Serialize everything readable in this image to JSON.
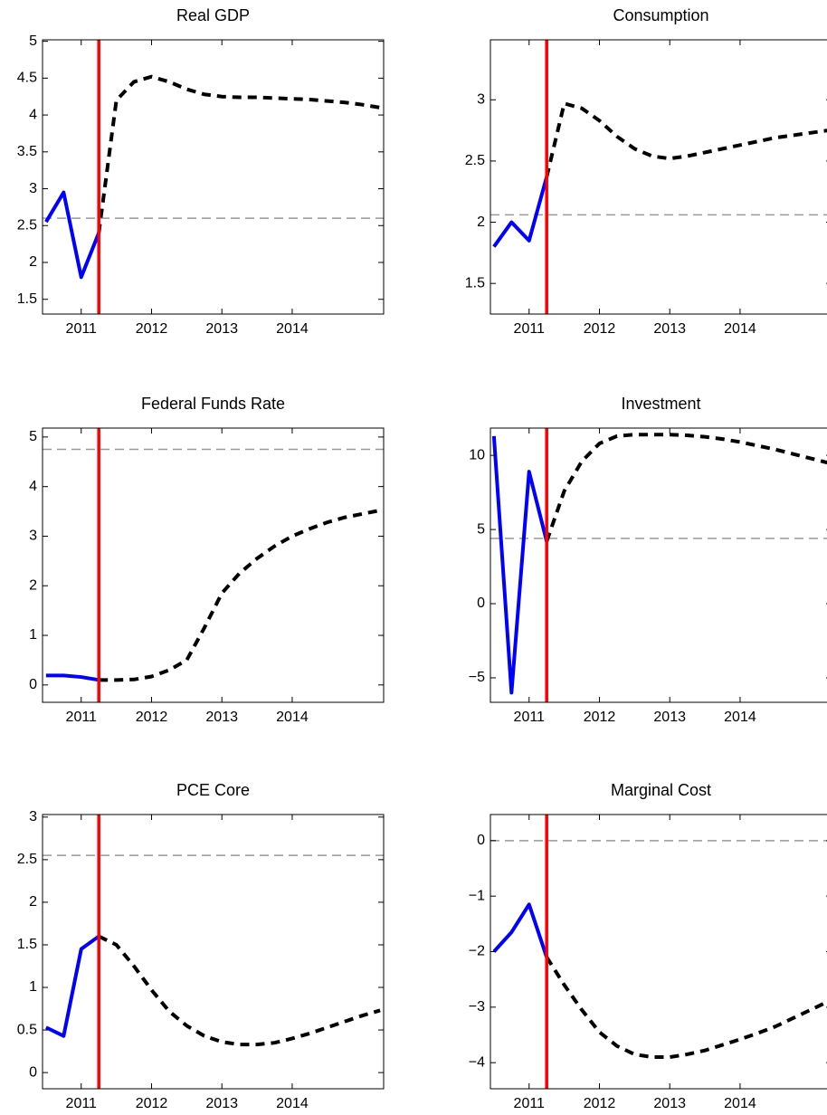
{
  "chart_data": [
    {
      "type": "line",
      "title": "Real GDP",
      "x": [
        2010.5,
        2010.75,
        2011,
        2011.25,
        2011.5,
        2011.75,
        2012,
        2012.25,
        2012.5,
        2012.75,
        2013,
        2013.25,
        2013.5,
        2013.75,
        2014,
        2014.25,
        2014.5,
        2014.75,
        2015,
        2015.25
      ],
      "series": [
        {
          "color": "#0000ff",
          "dashed": false,
          "values": [
            2.55,
            2.95,
            1.8,
            2.4,
            null,
            null,
            null,
            null,
            null,
            null,
            null,
            null,
            null,
            null,
            null,
            null,
            null,
            null,
            null,
            null
          ]
        },
        {
          "color": "#000000",
          "dashed": true,
          "values": [
            null,
            null,
            null,
            2.4,
            4.2,
            4.45,
            4.52,
            4.45,
            4.35,
            4.28,
            4.25,
            4.24,
            4.24,
            4.23,
            4.22,
            4.21,
            4.19,
            4.17,
            4.14,
            4.1
          ]
        }
      ],
      "xlim": [
        2010.45,
        2015.3
      ],
      "xticks": [
        2011,
        2012,
        2013,
        2014
      ],
      "ylim": [
        1.3,
        5.02
      ],
      "yticks": [
        1.5,
        2,
        2.5,
        3,
        3.5,
        4,
        4.5,
        5
      ],
      "vline": 2011.25,
      "vline_color": "#ff0000",
      "hline": 2.6,
      "hline_color": "#999999"
    },
    {
      "type": "line",
      "title": "Consumption",
      "x": [
        2010.5,
        2010.75,
        2011,
        2011.25,
        2011.5,
        2011.75,
        2012,
        2012.25,
        2012.5,
        2012.75,
        2013,
        2013.25,
        2013.5,
        2013.75,
        2014,
        2014.25,
        2014.5,
        2014.75,
        2015,
        2015.25
      ],
      "series": [
        {
          "color": "#0000ff",
          "dashed": false,
          "values": [
            1.8,
            2.0,
            1.85,
            2.37,
            null,
            null,
            null,
            null,
            null,
            null,
            null,
            null,
            null,
            null,
            null,
            null,
            null,
            null,
            null,
            null
          ]
        },
        {
          "color": "#000000",
          "dashed": true,
          "values": [
            null,
            null,
            null,
            2.37,
            2.97,
            2.93,
            2.83,
            2.7,
            2.6,
            2.54,
            2.52,
            2.54,
            2.57,
            2.6,
            2.63,
            2.66,
            2.69,
            2.71,
            2.73,
            2.75
          ]
        }
      ],
      "xlim": [
        2010.45,
        2015.3
      ],
      "xticks": [
        2011,
        2012,
        2013,
        2014
      ],
      "ylim": [
        1.25,
        3.49
      ],
      "yticks": [
        1.5,
        2,
        2.5,
        3
      ],
      "vline": 2011.25,
      "vline_color": "#ff0000",
      "hline": 2.06,
      "hline_color": "#999999"
    },
    {
      "type": "line",
      "title": "Federal Funds Rate",
      "x": [
        2010.5,
        2010.75,
        2011,
        2011.25,
        2011.5,
        2011.75,
        2012,
        2012.25,
        2012.5,
        2012.75,
        2013,
        2013.25,
        2013.5,
        2013.75,
        2014,
        2014.25,
        2014.5,
        2014.75,
        2015,
        2015.25
      ],
      "series": [
        {
          "color": "#0000ff",
          "dashed": false,
          "values": [
            0.19,
            0.19,
            0.16,
            0.1,
            null,
            null,
            null,
            null,
            null,
            null,
            null,
            null,
            null,
            null,
            null,
            null,
            null,
            null,
            null,
            null
          ]
        },
        {
          "color": "#000000",
          "dashed": true,
          "values": [
            null,
            null,
            null,
            0.1,
            0.1,
            0.11,
            0.17,
            0.3,
            0.5,
            1.15,
            1.85,
            2.25,
            2.55,
            2.8,
            3.0,
            3.15,
            3.28,
            3.38,
            3.45,
            3.52
          ]
        }
      ],
      "xlim": [
        2010.45,
        2015.3
      ],
      "xticks": [
        2011,
        2012,
        2013,
        2014
      ],
      "ylim": [
        -0.35,
        5.18
      ],
      "yticks": [
        0,
        1,
        2,
        3,
        4,
        5
      ],
      "vline": 2011.25,
      "vline_color": "#ff0000",
      "hline": 4.75,
      "hline_color": "#999999"
    },
    {
      "type": "line",
      "title": "Investment",
      "x": [
        2010.5,
        2010.75,
        2011,
        2011.25,
        2011.5,
        2011.75,
        2012,
        2012.25,
        2012.5,
        2012.75,
        2013,
        2013.25,
        2013.5,
        2013.75,
        2014,
        2014.25,
        2014.5,
        2014.75,
        2015,
        2015.25
      ],
      "series": [
        {
          "color": "#0000ff",
          "dashed": false,
          "values": [
            11.3,
            -6,
            8.9,
            4.2,
            null,
            null,
            null,
            null,
            null,
            null,
            null,
            null,
            null,
            null,
            null,
            null,
            null,
            null,
            null,
            null
          ]
        },
        {
          "color": "#000000",
          "dashed": true,
          "values": [
            null,
            null,
            null,
            4.2,
            7.6,
            9.6,
            10.8,
            11.3,
            11.4,
            11.4,
            11.4,
            11.35,
            11.25,
            11.1,
            10.9,
            10.65,
            10.4,
            10.1,
            9.8,
            9.5
          ]
        }
      ],
      "xlim": [
        2010.45,
        2015.3
      ],
      "xticks": [
        2011,
        2012,
        2013,
        2014
      ],
      "ylim": [
        -6.65,
        11.84
      ],
      "yticks": [
        {
          "value": -5,
          "label": "−5"
        },
        0,
        5,
        10
      ],
      "vline": 2011.25,
      "vline_color": "#ff0000",
      "hline": 4.4,
      "hline_color": "#999999"
    },
    {
      "type": "line",
      "title": "PCE Core",
      "x": [
        2010.5,
        2010.75,
        2011,
        2011.25,
        2011.5,
        2011.75,
        2012,
        2012.25,
        2012.5,
        2012.75,
        2013,
        2013.25,
        2013.5,
        2013.75,
        2014,
        2014.25,
        2014.5,
        2014.75,
        2015,
        2015.25
      ],
      "series": [
        {
          "color": "#0000ff",
          "dashed": false,
          "values": [
            0.53,
            0.43,
            1.45,
            1.6,
            null,
            null,
            null,
            null,
            null,
            null,
            null,
            null,
            null,
            null,
            null,
            null,
            null,
            null,
            null,
            null
          ]
        },
        {
          "color": "#000000",
          "dashed": true,
          "values": [
            null,
            null,
            null,
            1.6,
            1.5,
            1.25,
            0.97,
            0.72,
            0.55,
            0.43,
            0.36,
            0.33,
            0.33,
            0.35,
            0.4,
            0.46,
            0.53,
            0.6,
            0.67,
            0.73
          ]
        }
      ],
      "xlim": [
        2010.45,
        2015.3
      ],
      "xticks": [
        2011,
        2012,
        2013,
        2014
      ],
      "ylim": [
        -0.19,
        3.03
      ],
      "yticks": [
        0,
        0.5,
        1,
        1.5,
        2,
        2.5,
        3
      ],
      "vline": 2011.25,
      "vline_color": "#ff0000",
      "hline": 2.55,
      "hline_color": "#999999"
    },
    {
      "type": "line",
      "title": "Marginal Cost",
      "x": [
        2010.5,
        2010.75,
        2011,
        2011.25,
        2011.5,
        2011.75,
        2012,
        2012.25,
        2012.5,
        2012.75,
        2013,
        2013.25,
        2013.5,
        2013.75,
        2014,
        2014.25,
        2014.5,
        2014.75,
        2015,
        2015.25
      ],
      "series": [
        {
          "color": "#0000ff",
          "dashed": false,
          "values": [
            -2.0,
            -1.65,
            -1.15,
            -2.1,
            null,
            null,
            null,
            null,
            null,
            null,
            null,
            null,
            null,
            null,
            null,
            null,
            null,
            null,
            null,
            null
          ]
        },
        {
          "color": "#000000",
          "dashed": true,
          "values": [
            null,
            null,
            null,
            -2.1,
            -2.6,
            -3.05,
            -3.45,
            -3.7,
            -3.85,
            -3.9,
            -3.9,
            -3.85,
            -3.78,
            -3.68,
            -3.58,
            -3.47,
            -3.35,
            -3.2,
            -3.05,
            -2.9
          ]
        }
      ],
      "xlim": [
        2010.45,
        2015.3
      ],
      "xticks": [
        2011,
        2012,
        2013,
        2014
      ],
      "ylim": [
        -4.47,
        0.47
      ],
      "yticks": [
        {
          "value": -4,
          "label": "−4"
        },
        {
          "value": -3,
          "label": "−3"
        },
        {
          "value": -2,
          "label": "−2"
        },
        {
          "value": -1,
          "label": "−1"
        },
        0
      ],
      "vline": 2011.25,
      "vline_color": "#ff0000",
      "hline": 0,
      "hline_color": "#999999"
    }
  ]
}
